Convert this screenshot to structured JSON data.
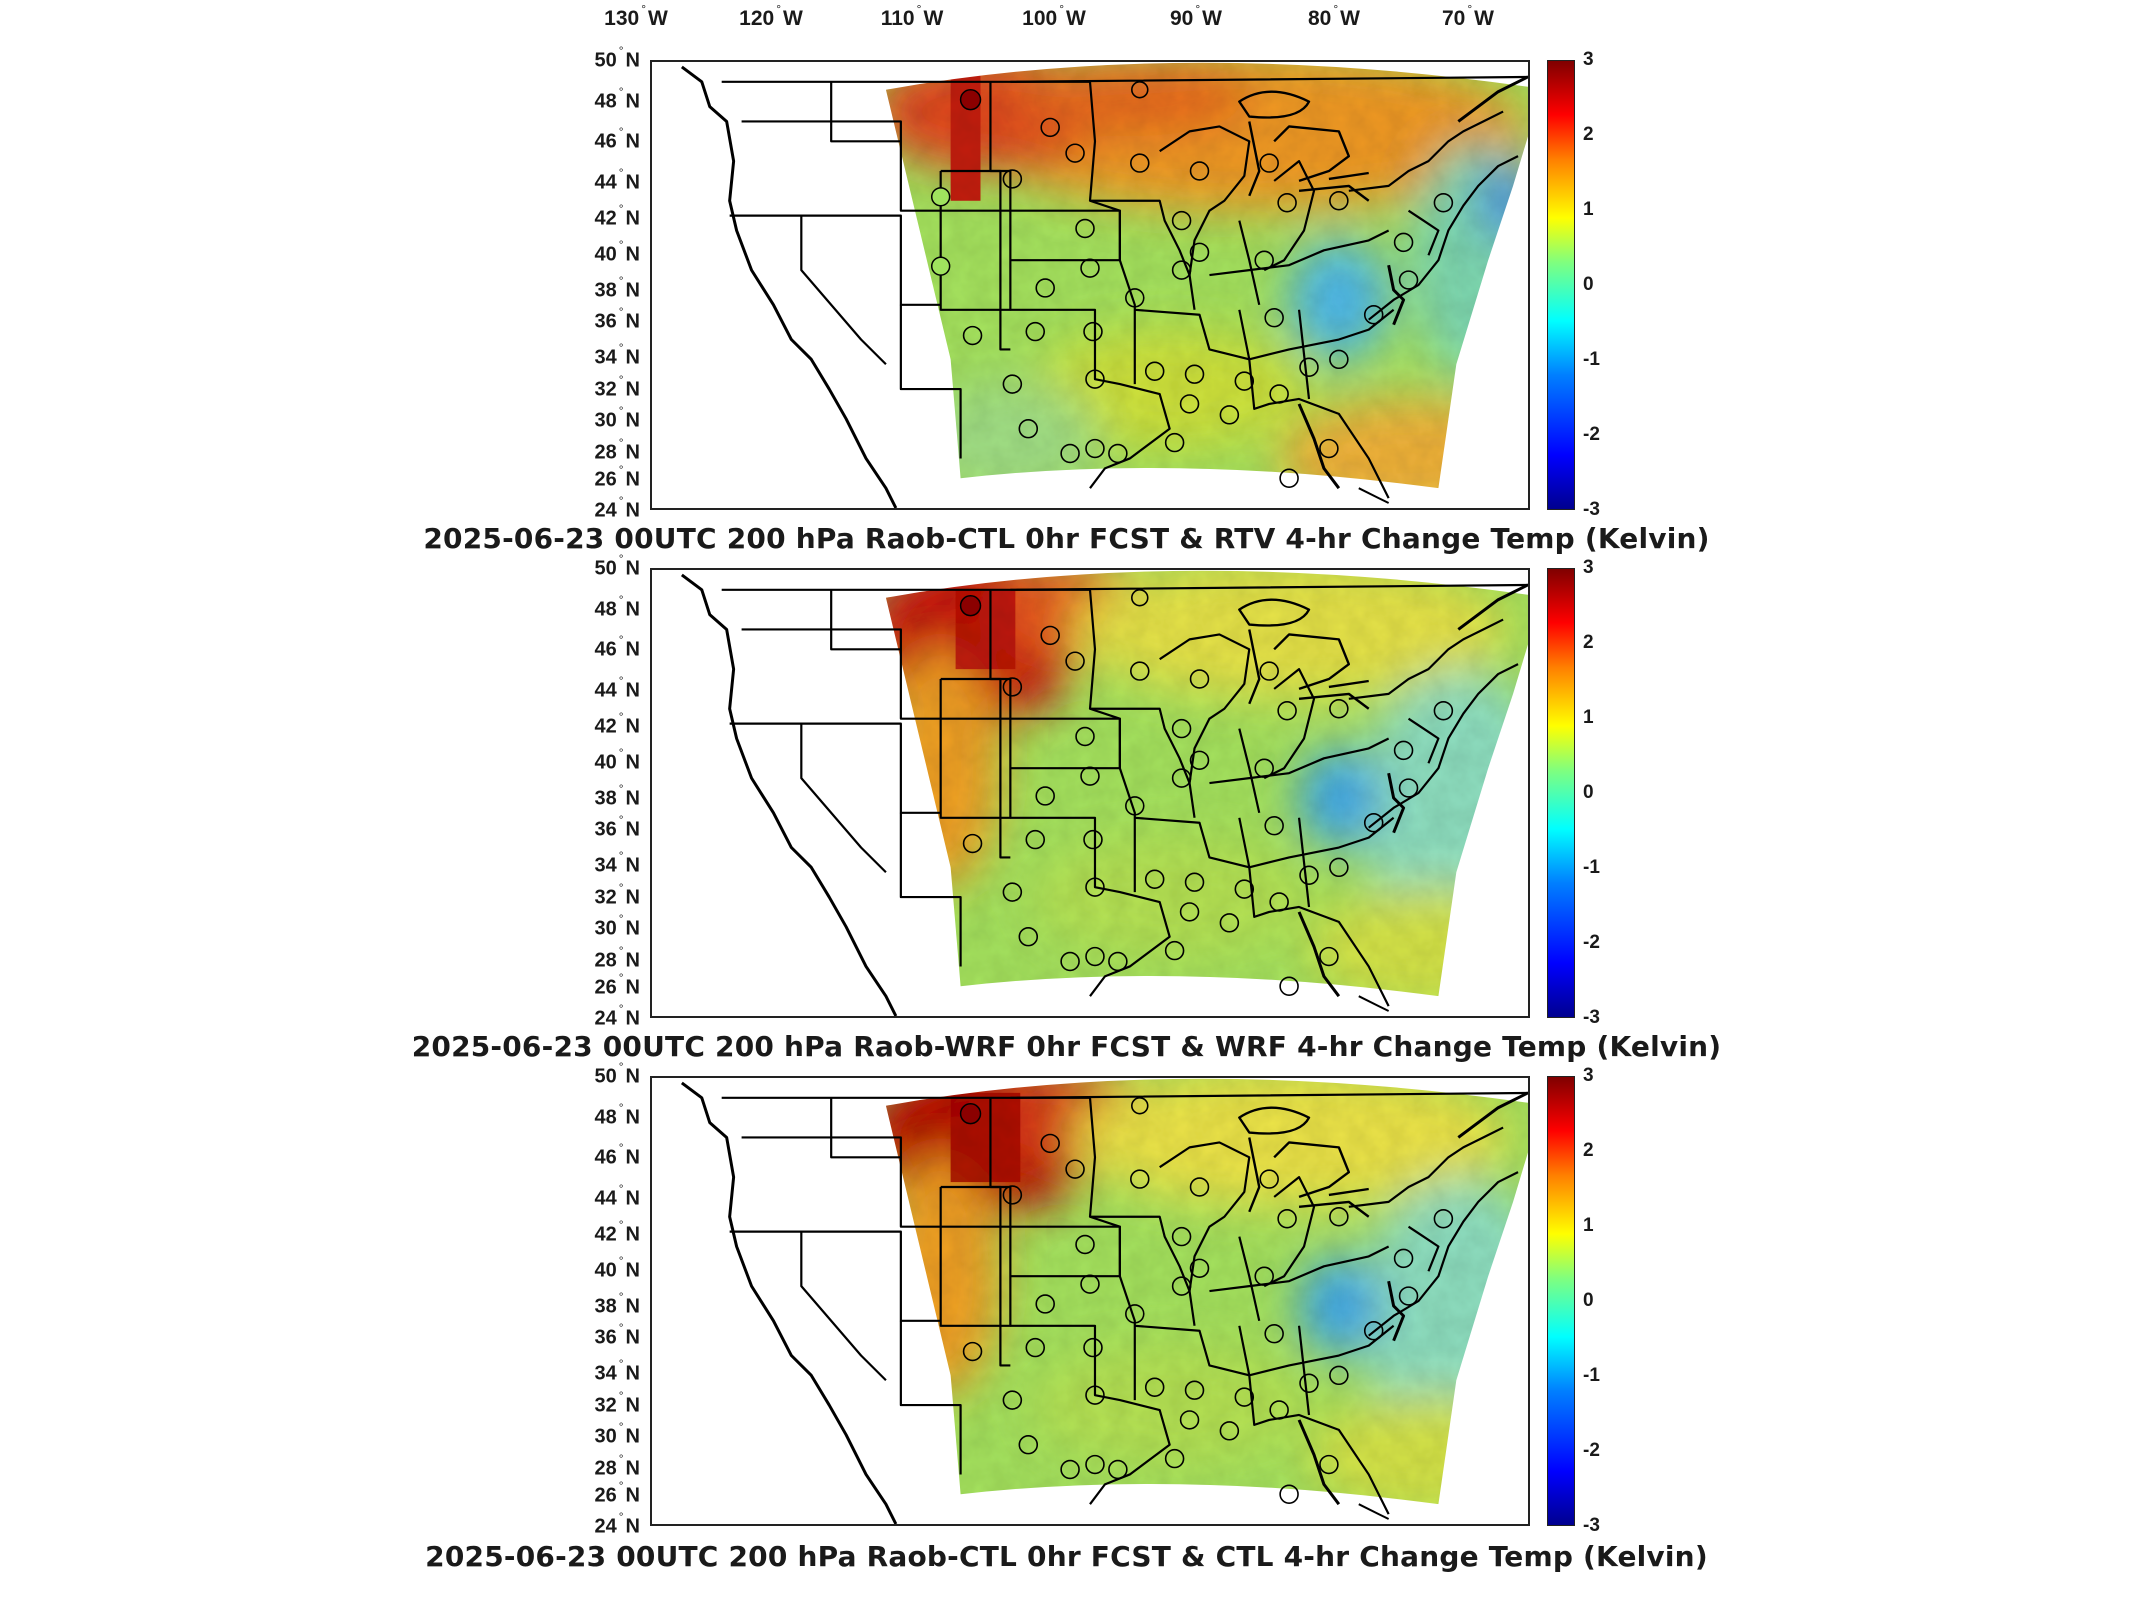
{
  "figure": {
    "top_longitude_labels": [
      "130",
      "120",
      "110",
      "100",
      "90",
      "80",
      "70"
    ],
    "longitude_hemisphere": "W",
    "latitude_labels": [
      "50",
      "48",
      "46",
      "44",
      "42",
      "40",
      "38",
      "36",
      "34",
      "32",
      "30",
      "28",
      "26",
      "24"
    ],
    "latitude_hemisphere": "N",
    "colorbar_ticks": [
      "3",
      "2",
      "1",
      "0",
      "-1",
      "-2",
      "-3"
    ],
    "colorbar_range": [
      -3,
      3
    ],
    "colorbar_colors": [
      "#00008f",
      "#0000ff",
      "#0080ff",
      "#00ffff",
      "#7fff7f",
      "#ffff00",
      "#ff8000",
      "#ff0000",
      "#800000"
    ],
    "colormap": "jet",
    "map_projection": "Lambert conformal CONUS",
    "base_map": "US state boundaries and coastlines, black outlines on white",
    "panels": [
      {
        "title": "2025-06-23 00UTC 200 hPa Raob-CTL 0hr FCST & RTV 4-hr Change Temp (Kelvin)",
        "field_colors": {
          "west": "#d4361f",
          "north": "#f08a22",
          "center": "#9fe25e",
          "south": "#c9e23a",
          "east": "#7ed6a0",
          "southeast": "#f5a12a"
        },
        "raob_markers": "open circles; filled #8b0000 at northern Montana, filled #9fe25e over Utah and Colorado"
      },
      {
        "title": "2025-06-23 00UTC 200 hPa Raob-WRF 0hr FCST & WRF 4-hr Change Temp (Kelvin)",
        "field_colors": {
          "west": "#c81e14",
          "north": "#e7e04a",
          "center": "#9fe25e",
          "south": "#bde25a",
          "east": "#8fe0a0",
          "southeast": "#d6e44b"
        },
        "raob_markers": "open circles; filled #8b0000 at northern Montana"
      },
      {
        "title": "2025-06-23 00UTC 200 hPa Raob-CTL 0hr FCST & CTL 4-hr Change Temp (Kelvin)",
        "field_colors": {
          "west": "#b81510",
          "north": "#f0e040",
          "center": "#9fe25e",
          "south": "#bde25a",
          "east": "#8fe0a0",
          "southeast": "#d6e44b"
        },
        "raob_markers": "open circles; filled #8b0000 at northern Montana"
      }
    ]
  }
}
